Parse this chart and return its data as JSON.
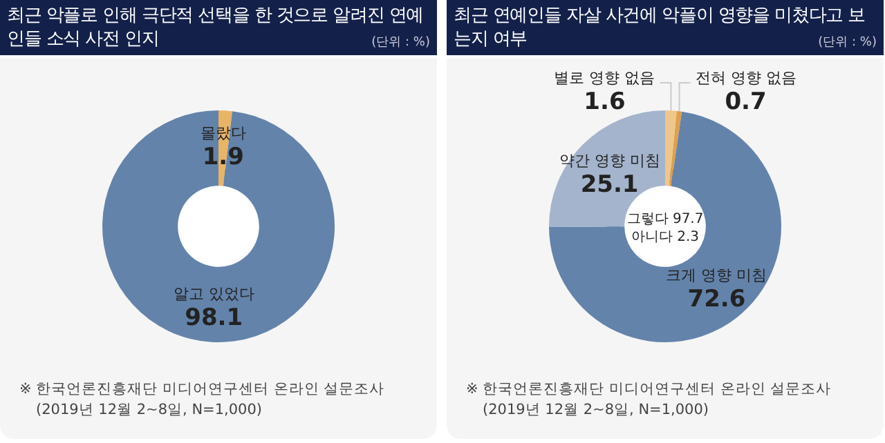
{
  "chart_data": [
    {
      "type": "donut",
      "title": "최근 악플로 인해 극단적 선택을 한 것으로 알려진 연예인들 소식 사전 인지",
      "subtitle": "(단위 : %)",
      "categories": [
        "몰랐다",
        "알고 있었다"
      ],
      "values": [
        1.9,
        98.1
      ],
      "colors": [
        "#e8b466",
        "#6383ab"
      ],
      "data_labels": true,
      "annotations": [
        "※ 한국언론진흥재단 미디어연구센터 온라인 설문조사",
        "(2019년 12월 2~8일, N=1,000)"
      ]
    },
    {
      "type": "donut",
      "title": "최근 연예인들 자살 사건에 악플이 영향을 미쳤다고 보는지 여부",
      "subtitle": "(단위 : %)",
      "categories": [
        "별로 영향 없음",
        "전혀 영향 없음",
        "크게 영향 미침",
        "약간 영향 미침"
      ],
      "values": [
        1.6,
        0.7,
        72.6,
        25.1
      ],
      "colors": [
        "#efc68c",
        "#e0a04a",
        "#6383ab",
        "#a4b4cd"
      ],
      "data_labels": true,
      "annotations": [
        "그렇다 97.7",
        "아니다 2.3",
        "※ 한국언론진흥재단 미디어연구센터 온라인 설문조사",
        "(2019년 12월 2~8일, N=1,000)"
      ]
    }
  ]
}
